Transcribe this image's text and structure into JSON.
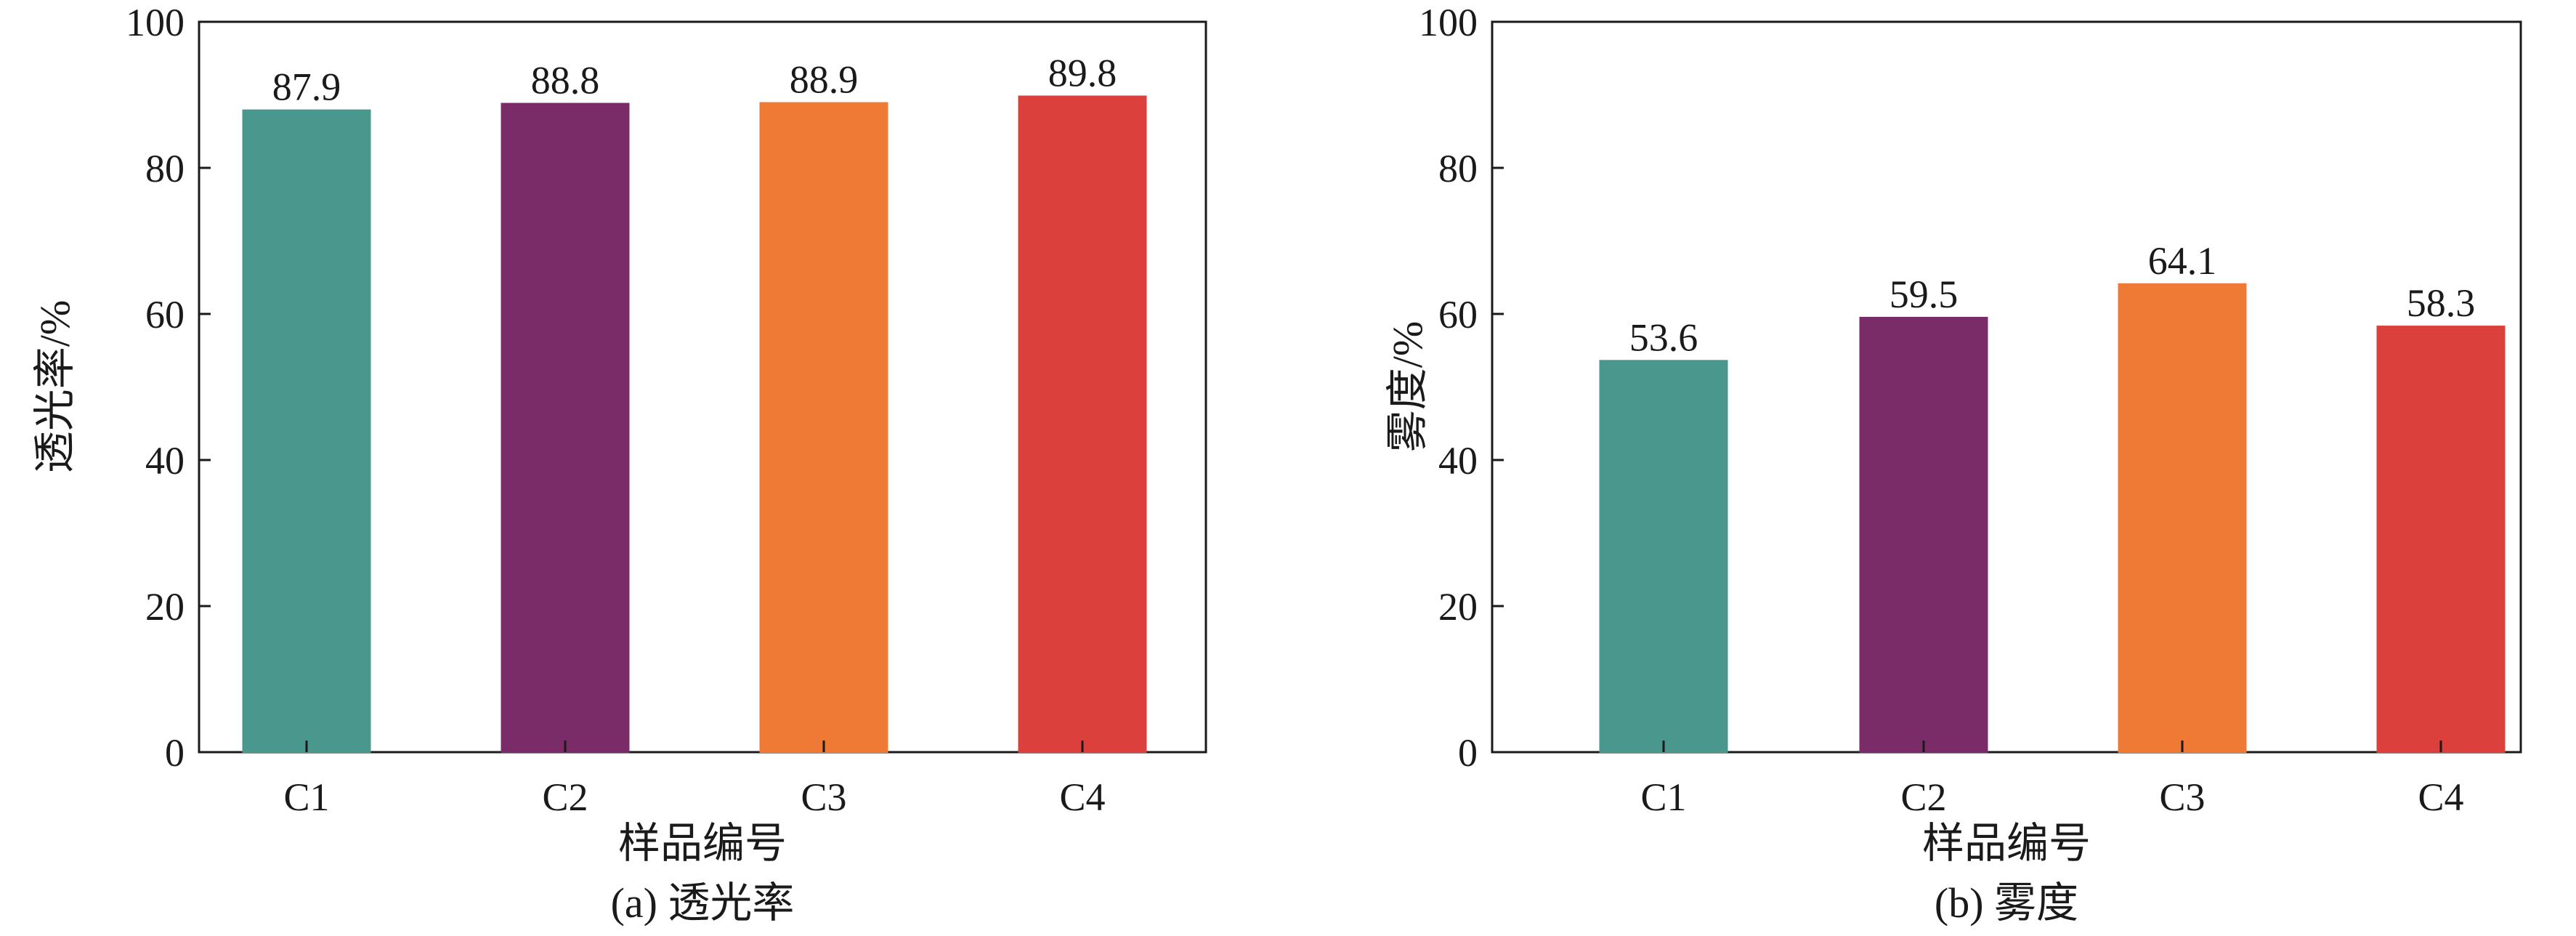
{
  "chart_data": [
    {
      "type": "bar",
      "categories": [
        "C1",
        "C2",
        "C3",
        "C4"
      ],
      "values": [
        87.9,
        88.8,
        88.9,
        89.8
      ],
      "value_labels": [
        "87.9",
        "88.8",
        "88.9",
        "89.8"
      ],
      "colors": [
        "#4a978e",
        "#7a2c68",
        "#ef7a36",
        "#db403d"
      ],
      "xlabel": "样品编号",
      "ylabel": "透光率/%",
      "caption": "(a) 透光率",
      "ylim": [
        0,
        100
      ],
      "yticks": [
        "0",
        "20",
        "40",
        "60",
        "80",
        "100"
      ],
      "ytick_values": [
        0,
        20,
        40,
        60,
        80,
        100
      ],
      "grid": false,
      "legend": "none"
    },
    {
      "type": "bar",
      "categories": [
        "C1",
        "C2",
        "C3",
        "C4"
      ],
      "values": [
        53.6,
        59.5,
        64.1,
        58.3
      ],
      "value_labels": [
        "53.6",
        "59.5",
        "64.1",
        "58.3"
      ],
      "colors": [
        "#4a978e",
        "#7a2c68",
        "#ef7a36",
        "#db403d"
      ],
      "xlabel": "样品编号",
      "ylabel": "雾度/%",
      "caption": "(b) 雾度",
      "ylim": [
        0,
        100
      ],
      "yticks": [
        "0",
        "20",
        "40",
        "60",
        "80",
        "100"
      ],
      "ytick_values": [
        0,
        20,
        40,
        60,
        80,
        100
      ],
      "grid": false,
      "legend": "none"
    }
  ]
}
